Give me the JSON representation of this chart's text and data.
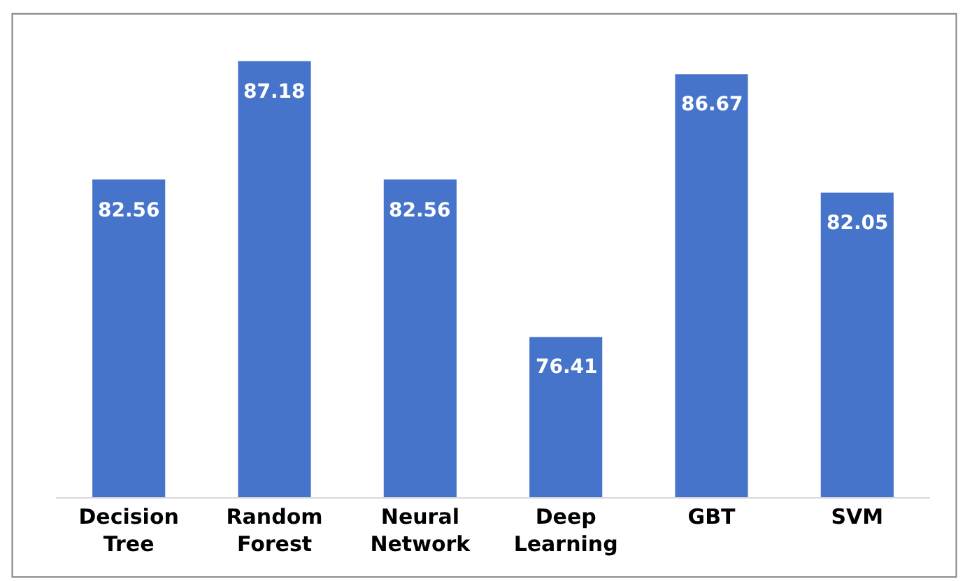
{
  "chart_data": {
    "type": "bar",
    "categories": [
      "Decision Tree",
      "Random Forest",
      "Neural Network",
      "Deep Learning",
      "GBT",
      "SVM"
    ],
    "values": [
      82.56,
      87.18,
      82.56,
      76.41,
      86.67,
      82.05
    ],
    "color": "#4674cb",
    "data_labels": true,
    "tick_labels": "x"
  }
}
